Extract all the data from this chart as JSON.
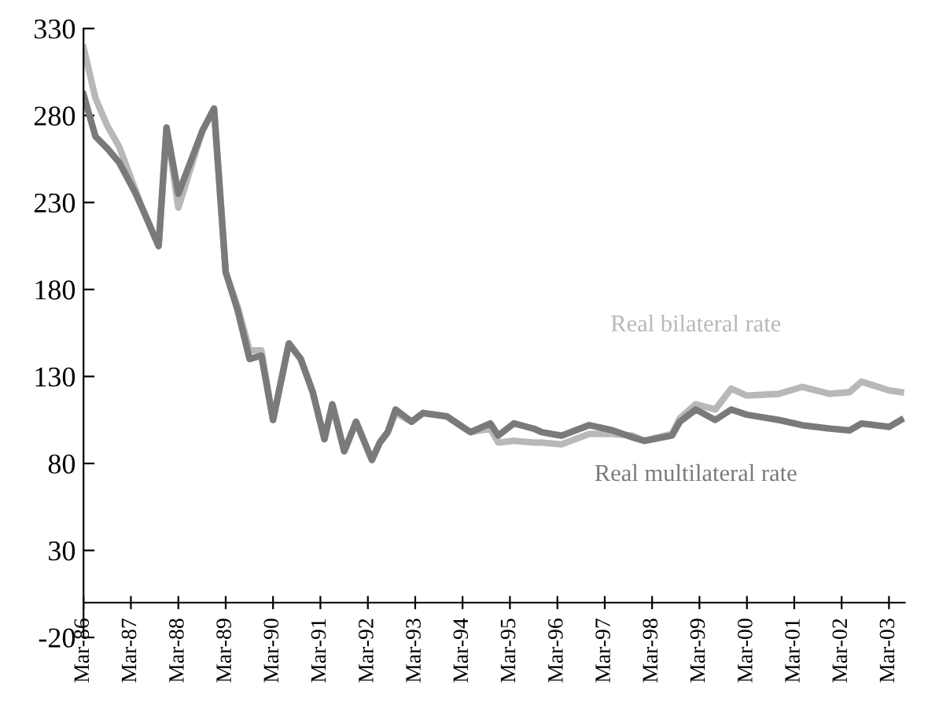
{
  "chart_data": {
    "type": "line",
    "x": [
      "1986-03",
      "1986-06",
      "1986-09",
      "1986-12",
      "1987-04",
      "1987-06",
      "1987-10",
      "1987-12",
      "1988-03",
      "1988-09",
      "1988-12",
      "1989-03",
      "1989-06",
      "1989-09",
      "1989-12",
      "1990-03",
      "1990-07",
      "1990-10",
      "1991-01",
      "1991-04",
      "1991-06",
      "1991-09",
      "1991-12",
      "1992-04",
      "1992-06",
      "1992-08",
      "1992-10",
      "1993-02",
      "1993-05",
      "1993-11",
      "1994-03",
      "1994-05",
      "1994-10",
      "1994-12",
      "1995-04",
      "1995-09",
      "1995-11",
      "1996-04",
      "1996-11",
      "1997-05",
      "1997-10",
      "1998-01",
      "1998-08",
      "1998-10",
      "1999-02",
      "1999-07",
      "1999-11",
      "2000-03",
      "2000-11",
      "2001-05",
      "2001-12",
      "2002-05",
      "2002-08",
      "2003-03",
      "2003-06"
    ],
    "series": [
      {
        "name": "Real bilateral rate",
        "color": "#b8b8b8",
        "values": [
          319,
          290,
          274,
          262,
          238,
          226,
          205,
          273,
          227,
          271,
          284,
          190,
          170,
          145,
          145,
          105,
          149,
          140,
          121,
          94,
          114,
          87,
          104,
          82,
          92,
          98,
          109,
          104,
          109,
          107,
          101,
          98,
          100,
          92,
          93,
          92,
          92,
          91,
          97,
          97,
          96,
          93,
          97,
          106,
          114,
          111,
          123,
          119,
          120,
          124,
          120,
          121,
          127,
          122,
          121
        ]
      },
      {
        "name": "Real multilateral rate",
        "color": "#7a7a7a",
        "values": [
          292,
          268,
          261,
          253,
          236,
          226,
          205,
          273,
          235,
          271,
          284,
          190,
          168,
          140,
          142,
          105,
          149,
          140,
          121,
          94,
          114,
          87,
          104,
          82,
          92,
          98,
          111,
          104,
          109,
          107,
          101,
          98,
          103,
          96,
          103,
          100,
          98,
          96,
          102,
          99,
          95,
          93,
          96,
          104,
          111,
          105,
          111,
          108,
          105,
          102,
          100,
          99,
          103,
          101,
          105
        ]
      }
    ],
    "xlim": [
      "1986-03",
      "2003-07"
    ],
    "xticks": [
      {
        "value": "1986-03",
        "label": "Mar-86"
      },
      {
        "value": "1987-03",
        "label": "Mar-87"
      },
      {
        "value": "1988-03",
        "label": "Mar-88"
      },
      {
        "value": "1989-03",
        "label": "Mar-89"
      },
      {
        "value": "1990-03",
        "label": "Mar-90"
      },
      {
        "value": "1991-03",
        "label": "Mar-91"
      },
      {
        "value": "1992-03",
        "label": "Mar-92"
      },
      {
        "value": "1993-03",
        "label": "Mar-93"
      },
      {
        "value": "1994-03",
        "label": "Mar-94"
      },
      {
        "value": "1995-03",
        "label": "Mar-95"
      },
      {
        "value": "1996-03",
        "label": "Mar-96"
      },
      {
        "value": "1997-03",
        "label": "Mar-97"
      },
      {
        "value": "1998-03",
        "label": "Mar-98"
      },
      {
        "value": "1999-03",
        "label": "Mar-99"
      },
      {
        "value": "2000-03",
        "label": "Mar-00"
      },
      {
        "value": "2001-03",
        "label": "Mar-01"
      },
      {
        "value": "2002-03",
        "label": "Mar-02"
      },
      {
        "value": "2003-03",
        "label": "Mar-03"
      }
    ],
    "ylim": [
      -20,
      330
    ],
    "yticks": [
      -20,
      30,
      80,
      130,
      180,
      230,
      280,
      330
    ],
    "grid": false,
    "legend": false,
    "marker": "none",
    "line_style": "solid"
  }
}
